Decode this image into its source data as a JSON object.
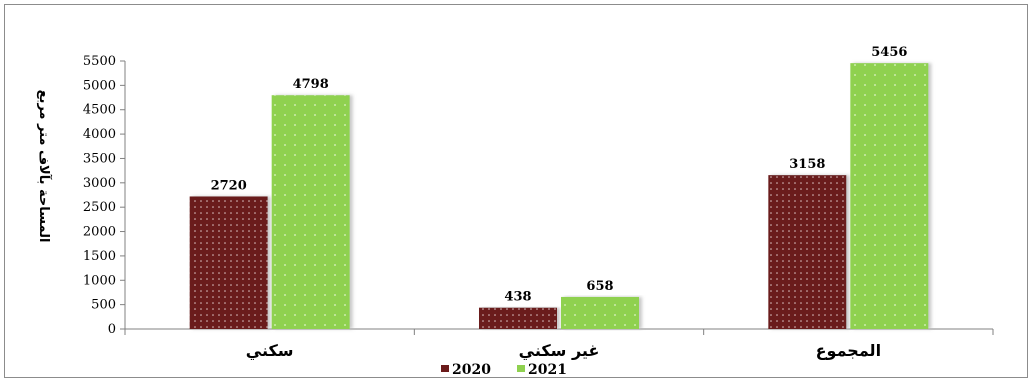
{
  "chart_data": {
    "type": "bar",
    "categories": [
      "سكني",
      "غير سكني",
      "المجموع"
    ],
    "series": [
      {
        "name": "2020",
        "values": [
          2720,
          438,
          3158
        ],
        "color": "#6b1a1a"
      },
      {
        "name": "2021",
        "values": [
          4798,
          658,
          5456
        ],
        "color": "#8fd14f"
      }
    ],
    "ylabel": "المساحة بآلاف متر مربع",
    "xlabel": "",
    "ylim": [
      0,
      5500
    ],
    "yticks": [
      0,
      500,
      1000,
      1500,
      2000,
      2500,
      3000,
      3500,
      4000,
      4500,
      5000,
      5500
    ],
    "grid": false,
    "legend_position": "bottom"
  }
}
